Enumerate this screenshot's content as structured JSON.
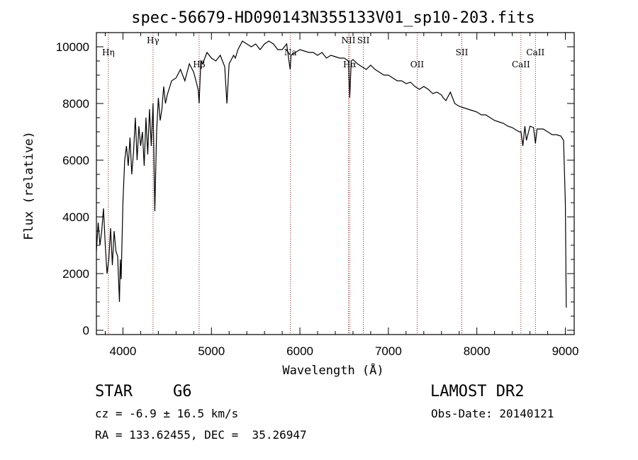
{
  "chart_data": {
    "type": "line",
    "title": "spec-56679-HD090143N355133V01_sp10-203.fits",
    "xlabel": "Wavelength (Å)",
    "ylabel": "Flux (relative)",
    "xlim": [
      3700,
      9100
    ],
    "ylim": [
      -150,
      10500
    ],
    "x_ticks": [
      4000,
      5000,
      6000,
      7000,
      8000,
      9000
    ],
    "y_ticks": [
      0,
      2000,
      4000,
      6000,
      8000,
      10000
    ],
    "grid": false,
    "series": [
      {
        "x": [
          3700,
          3720,
          3740,
          3760,
          3780,
          3800,
          3820,
          3840,
          3860,
          3880,
          3900,
          3920,
          3940,
          3960,
          3970,
          3980,
          4000,
          4020,
          4040,
          4060,
          4080,
          4100,
          4120,
          4140,
          4160,
          4180,
          4200,
          4220,
          4240,
          4260,
          4280,
          4300,
          4320,
          4340,
          4360,
          4380,
          4400,
          4420,
          4440,
          4460,
          4480,
          4500,
          4550,
          4600,
          4650,
          4700,
          4750,
          4800,
          4850,
          4861,
          4880,
          4900,
          4950,
          5000,
          5050,
          5100,
          5150,
          5175,
          5200,
          5250,
          5270,
          5300,
          5350,
          5400,
          5450,
          5500,
          5550,
          5600,
          5650,
          5700,
          5750,
          5800,
          5850,
          5890,
          5900,
          5950,
          6000,
          6050,
          6100,
          6150,
          6200,
          6250,
          6300,
          6350,
          6400,
          6450,
          6500,
          6550,
          6563,
          6580,
          6600,
          6650,
          6700,
          6750,
          6800,
          6850,
          6900,
          6950,
          7000,
          7050,
          7100,
          7150,
          7200,
          7250,
          7300,
          7350,
          7400,
          7450,
          7500,
          7550,
          7600,
          7620,
          7650,
          7700,
          7750,
          7800,
          7850,
          7900,
          7950,
          8000,
          8050,
          8100,
          8150,
          8200,
          8250,
          8300,
          8350,
          8400,
          8450,
          8480,
          8498,
          8520,
          8542,
          8560,
          8600,
          8640,
          8662,
          8680,
          8700,
          8750,
          8800,
          8850,
          8900,
          8950,
          8980,
          9000,
          9010
        ],
        "y": [
          2800,
          3800,
          3000,
          3500,
          4300,
          3000,
          2000,
          2500,
          3600,
          2300,
          3500,
          2800,
          2600,
          1000,
          2500,
          1800,
          4500,
          6000,
          6500,
          5800,
          6800,
          5500,
          6300,
          7500,
          6000,
          7200,
          6500,
          7000,
          5800,
          7500,
          6200,
          7800,
          6500,
          8000,
          4200,
          7000,
          8200,
          7400,
          7800,
          8600,
          8000,
          8300,
          8800,
          8900,
          9200,
          8800,
          9400,
          9100,
          8500,
          8000,
          9500,
          9400,
          9800,
          9600,
          9500,
          9700,
          9300,
          8000,
          9400,
          9700,
          9600,
          9900,
          10200,
          10100,
          10000,
          10100,
          9900,
          10100,
          10200,
          10100,
          9900,
          9900,
          10100,
          9200,
          9700,
          9800,
          9900,
          9850,
          9800,
          9800,
          9700,
          9800,
          9600,
          9700,
          9650,
          9600,
          9600,
          9500,
          8200,
          9500,
          9550,
          9400,
          9300,
          9200,
          9350,
          9200,
          9100,
          9000,
          9000,
          8900,
          8800,
          8800,
          8700,
          8750,
          8600,
          8500,
          8600,
          8500,
          8350,
          8400,
          8300,
          8200,
          8100,
          8400,
          8000,
          7900,
          7850,
          7800,
          7750,
          7700,
          7600,
          7600,
          7500,
          7400,
          7350,
          7300,
          7200,
          7150,
          7050,
          7000,
          7000,
          6500,
          7200,
          6700,
          7200,
          7150,
          6600,
          7100,
          7100,
          7100,
          7000,
          6900,
          6900,
          6850,
          6700,
          4500,
          800
        ]
      }
    ],
    "annotations": [
      {
        "label": "Hη",
        "wavelength": 3835,
        "row": 3
      },
      {
        "label": "Hγ",
        "wavelength": 4340,
        "row": 1
      },
      {
        "label": "Hβ",
        "wavelength": 4861,
        "row": 4
      },
      {
        "label": "Na",
        "wavelength": 5893,
        "row": 3
      },
      {
        "label": "NII",
        "wavelength": 6548,
        "row": 1
      },
      {
        "label": "Hα",
        "wavelength": 6563,
        "row": 4
      },
      {
        "label": "SII",
        "wavelength": 6717,
        "row": 1
      },
      {
        "label": "OII",
        "wavelength": 7325,
        "row": 4
      },
      {
        "label": "SII",
        "wavelength": 7830,
        "row": 3
      },
      {
        "label": "CaII",
        "wavelength": 8498,
        "row": 4
      },
      {
        "label": "CaII",
        "wavelength": 8662,
        "row": 3
      }
    ]
  },
  "info": {
    "object_class": "STAR",
    "subclass": "G6",
    "survey": "LAMOST DR2",
    "redshift": "cz = -6.9 ± 16.5 km/s",
    "obs_date": "Obs-Date: 20140121",
    "coords": "RA = 133.62455, DEC =  35.26947"
  }
}
